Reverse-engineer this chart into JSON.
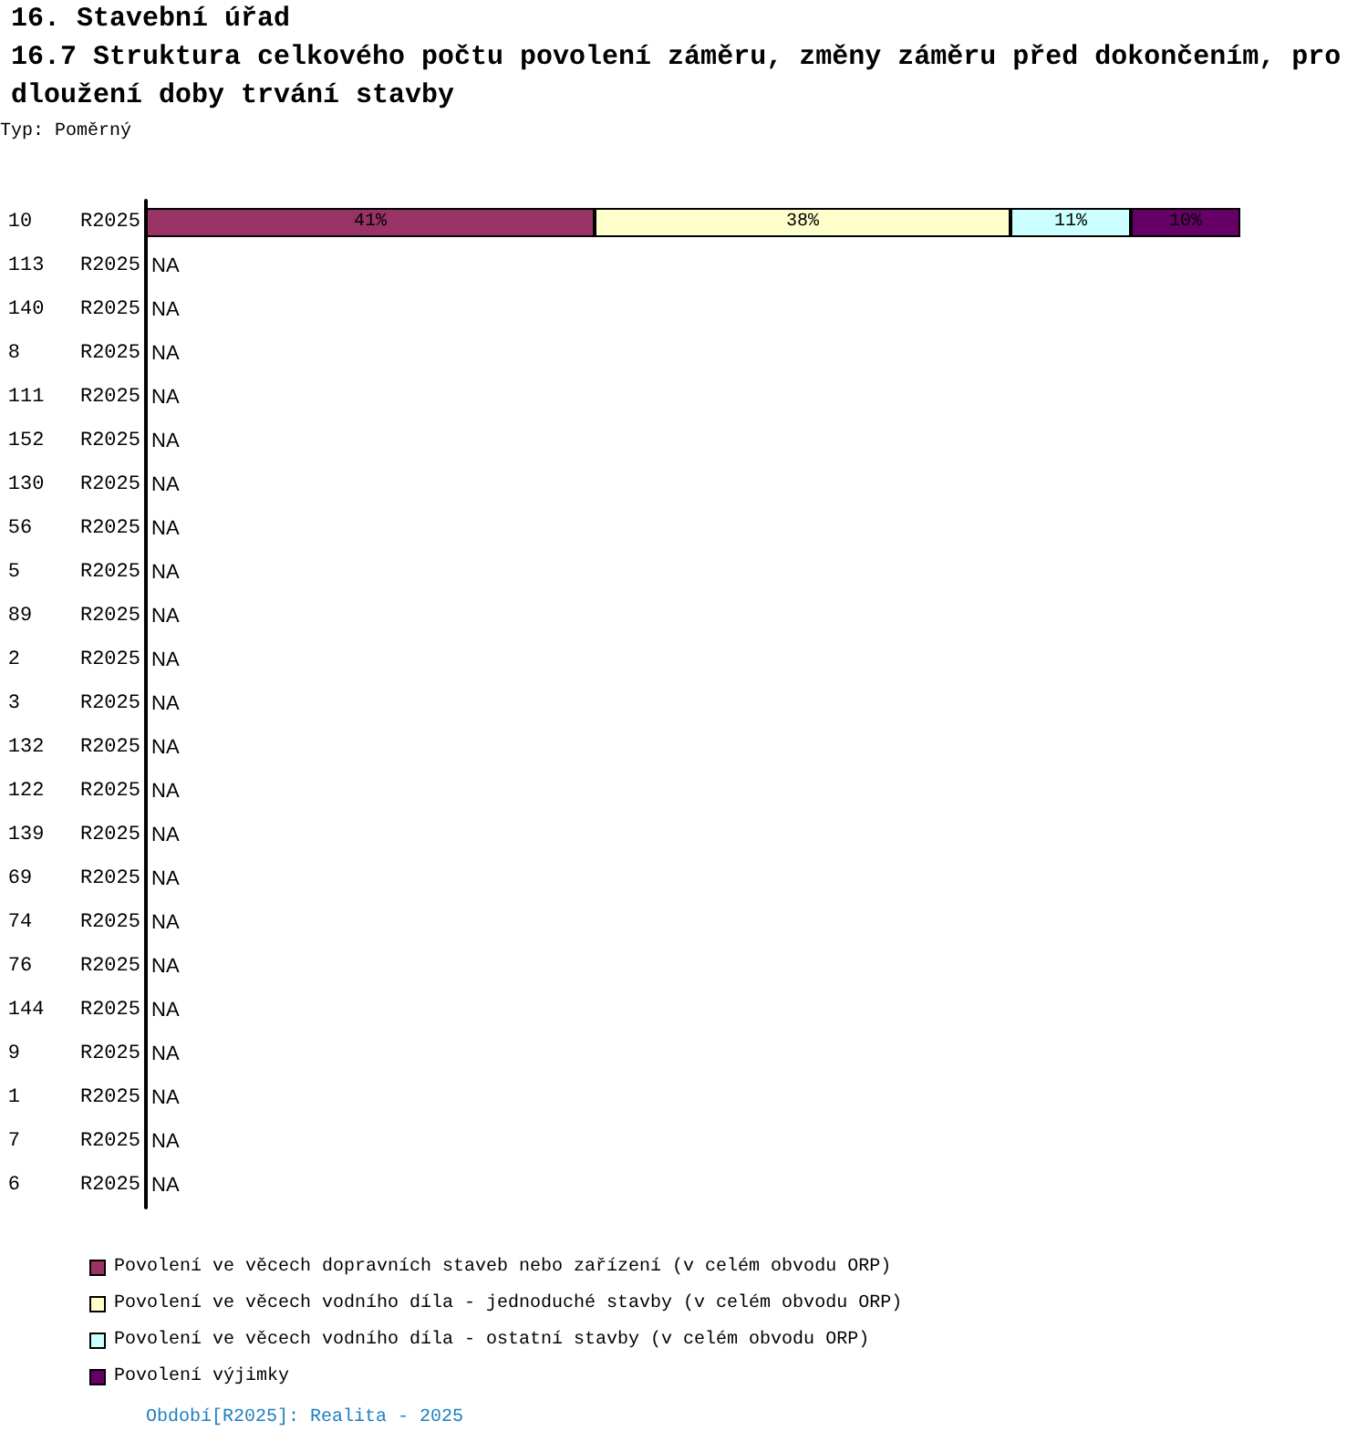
{
  "chart_data": {
    "type": "bar",
    "orientation": "horizontal",
    "stacked": true,
    "tick_labels": "y",
    "title": "16. Stavební úřad",
    "subtitle": "16.7 Struktura celkového počtu povolení záměru, změny záměru před dokončením, prodloužení doby trvání stavby",
    "annotations": [
      "Typ: Poměrný",
      "Období[R2025]: Realita - 2025"
    ],
    "categories": [
      "10 R2025",
      "113 R2025",
      "140 R2025",
      "8 R2025",
      "111 R2025",
      "152 R2025",
      "130 R2025",
      "56 R2025",
      "5 R2025",
      "89 R2025",
      "2 R2025",
      "3 R2025",
      "132 R2025",
      "122 R2025",
      "139 R2025",
      "69 R2025",
      "74 R2025",
      "76 R2025",
      "144 R2025",
      "9 R2025",
      "1 R2025",
      "7 R2025",
      "6 R2025"
    ],
    "series": [
      {
        "name": "Povolení ve věcech dopravních staveb nebo zařízení (v celém obvodu ORP)",
        "color": "#993366",
        "values": [
          41,
          null,
          null,
          null,
          null,
          null,
          null,
          null,
          null,
          null,
          null,
          null,
          null,
          null,
          null,
          null,
          null,
          null,
          null,
          null,
          null,
          null,
          null
        ],
        "value_labels": [
          "41%",
          "NA",
          "NA",
          "NA",
          "NA",
          "NA",
          "NA",
          "NA",
          "NA",
          "NA",
          "NA",
          "NA",
          "NA",
          "NA",
          "NA",
          "NA",
          "NA",
          "NA",
          "NA",
          "NA",
          "NA",
          "NA",
          "NA"
        ]
      },
      {
        "name": "Povolení ve věcech vodního díla - jednoduché stavby (v celém obvodu ORP)",
        "color": "#ffffcc",
        "values": [
          38,
          null,
          null,
          null,
          null,
          null,
          null,
          null,
          null,
          null,
          null,
          null,
          null,
          null,
          null,
          null,
          null,
          null,
          null,
          null,
          null,
          null,
          null
        ],
        "value_labels": [
          "38%",
          null,
          null,
          null,
          null,
          null,
          null,
          null,
          null,
          null,
          null,
          null,
          null,
          null,
          null,
          null,
          null,
          null,
          null,
          null,
          null,
          null,
          null
        ]
      },
      {
        "name": "Povolení ve věcech vodního díla - ostatní stavby (v celém obvodu ORP)",
        "color": "#ccffff",
        "values": [
          11,
          null,
          null,
          null,
          null,
          null,
          null,
          null,
          null,
          null,
          null,
          null,
          null,
          null,
          null,
          null,
          null,
          null,
          null,
          null,
          null,
          null,
          null
        ],
        "value_labels": [
          "11%",
          null,
          null,
          null,
          null,
          null,
          null,
          null,
          null,
          null,
          null,
          null,
          null,
          null,
          null,
          null,
          null,
          null,
          null,
          null,
          null,
          null,
          null
        ]
      },
      {
        "name": "Povolení výjimky",
        "color": "#660066",
        "values": [
          10,
          null,
          null,
          null,
          null,
          null,
          null,
          null,
          null,
          null,
          null,
          null,
          null,
          null,
          null,
          null,
          null,
          null,
          null,
          null,
          null,
          null,
          null
        ],
        "value_labels": [
          "10%",
          null,
          null,
          null,
          null,
          null,
          null,
          null,
          null,
          null,
          null,
          null,
          null,
          null,
          null,
          null,
          null,
          null,
          null,
          null,
          null,
          null,
          null
        ]
      }
    ],
    "legend": "bottom left",
    "grid": false
  }
}
